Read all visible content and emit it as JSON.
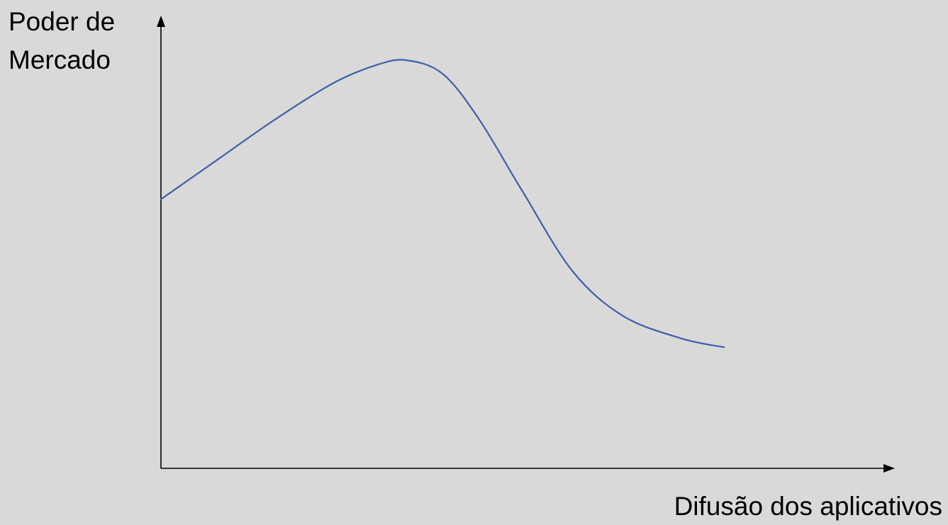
{
  "chart_data": {
    "type": "line",
    "title": "",
    "ylabel_lines": [
      "Poder de",
      "Mercado"
    ],
    "xlabel": "Difusão dos aplicativos",
    "grid": false,
    "ticks": false,
    "colors": {
      "background": "#d9d9d9",
      "axis": "#000000",
      "curve": "#3f5fa8"
    },
    "series": [
      {
        "description": "market power rises with app diffusion, peaks, then declines and levels off",
        "x": [
          0,
          0.08,
          0.16,
          0.24,
          0.3,
          0.34,
          0.39,
          0.44,
          0.5,
          0.57,
          0.64,
          0.72,
          0.78
        ],
        "y": [
          0.6,
          0.69,
          0.78,
          0.86,
          0.9,
          0.91,
          0.88,
          0.78,
          0.62,
          0.44,
          0.34,
          0.29,
          0.27
        ]
      }
    ]
  }
}
